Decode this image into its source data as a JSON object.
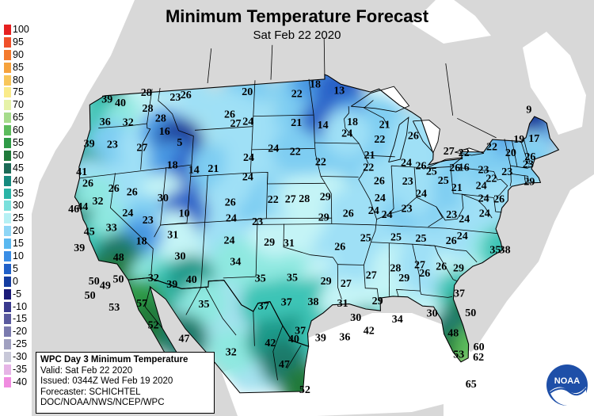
{
  "title": "Minimum Temperature Forecast",
  "subtitle": "Sat Feb 22 2020",
  "legend": [
    {
      "label": "100",
      "color": "#e62020"
    },
    {
      "label": "95",
      "color": "#f0502a"
    },
    {
      "label": "90",
      "color": "#f47a2e"
    },
    {
      "label": "85",
      "color": "#f6a23c"
    },
    {
      "label": "80",
      "color": "#f8c65a"
    },
    {
      "label": "75",
      "color": "#faeb8a"
    },
    {
      "label": "70",
      "color": "#e6f2a8"
    },
    {
      "label": "65",
      "color": "#a6dc8c"
    },
    {
      "label": "60",
      "color": "#5cbc5c"
    },
    {
      "label": "55",
      "color": "#2e9a46"
    },
    {
      "label": "50",
      "color": "#1f7a3a"
    },
    {
      "label": "45",
      "color": "#1c6a56"
    },
    {
      "label": "40",
      "color": "#168a7e"
    },
    {
      "label": "35",
      "color": "#2ab4a6"
    },
    {
      "label": "30",
      "color": "#7ae0dc"
    },
    {
      "label": "25",
      "color": "#b6f0f4"
    },
    {
      "label": "20",
      "color": "#8ed6f6"
    },
    {
      "label": "15",
      "color": "#5ab8f0"
    },
    {
      "label": "10",
      "color": "#3a8ee6"
    },
    {
      "label": "5",
      "color": "#2060c8"
    },
    {
      "label": "0",
      "color": "#143ca0"
    },
    {
      "label": "-5",
      "color": "#1a1a78"
    },
    {
      "label": "-10",
      "color": "#3a3a8e"
    },
    {
      "label": "-15",
      "color": "#5a5a9e"
    },
    {
      "label": "-20",
      "color": "#7a7aae"
    },
    {
      "label": "-25",
      "color": "#a0a0c0"
    },
    {
      "label": "-30",
      "color": "#c8c8d8"
    },
    {
      "label": "-35",
      "color": "#e6b4e6"
    },
    {
      "label": "-40",
      "color": "#f08ce0"
    }
  ],
  "info": {
    "heading": "WPC Day 3 Minimum Temperature",
    "valid": "Valid: Sat Feb 22 2020",
    "issued": "Issued: 0344Z Wed Feb 19 2020",
    "forecaster": "Forecaster: SCHICHTEL",
    "agency": "DOC/NOAA/NWS/NCEP/WPC"
  },
  "logo_text": "NOAA",
  "temperatures": [
    {
      "v": "39",
      "lon": -122.6,
      "lat": 48.7
    },
    {
      "v": "40",
      "lon": -120.8,
      "lat": 48.2
    },
    {
      "v": "28",
      "lon": -117.7,
      "lat": 48.8
    },
    {
      "v": "36",
      "lon": -122.3,
      "lat": 46.7
    },
    {
      "v": "28",
      "lon": -117.2,
      "lat": 47.4
    },
    {
      "v": "23",
      "lon": -113.9,
      "lat": 48.1
    },
    {
      "v": "26",
      "lon": -112.6,
      "lat": 48.2
    },
    {
      "v": "32",
      "lon": -119.4,
      "lat": 46.4
    },
    {
      "v": "28",
      "lon": -115.4,
      "lat": 46.4
    },
    {
      "v": "39",
      "lon": -123.8,
      "lat": 45.0
    },
    {
      "v": "23",
      "lon": -120.9,
      "lat": 44.6
    },
    {
      "v": "27",
      "lon": -117.2,
      "lat": 44.0
    },
    {
      "v": "16",
      "lon": -114.7,
      "lat": 45.2
    },
    {
      "v": "5",
      "lon": -112.7,
      "lat": 44.1
    },
    {
      "v": "41",
      "lon": -124.1,
      "lat": 42.6
    },
    {
      "v": "26",
      "lon": -123.1,
      "lat": 41.5
    },
    {
      "v": "26",
      "lon": -119.9,
      "lat": 40.7
    },
    {
      "v": "26",
      "lon": -117.7,
      "lat": 40.2
    },
    {
      "v": "18",
      "lon": -113.3,
      "lat": 42.2
    },
    {
      "v": "14",
      "lon": -110.7,
      "lat": 41.6
    },
    {
      "v": "21",
      "lon": -108.4,
      "lat": 41.6
    },
    {
      "v": "46",
      "lon": -124.3,
      "lat": 39.4
    },
    {
      "v": "44",
      "lon": -123.3,
      "lat": 39.5
    },
    {
      "v": "32",
      "lon": -121.6,
      "lat": 39.8
    },
    {
      "v": "30",
      "lon": -114.0,
      "lat": 39.4
    },
    {
      "v": "24",
      "lon": -117.9,
      "lat": 38.4
    },
    {
      "v": "45",
      "lon": -122.1,
      "lat": 37.2
    },
    {
      "v": "33",
      "lon": -119.6,
      "lat": 37.3
    },
    {
      "v": "23",
      "lon": -115.5,
      "lat": 37.6
    },
    {
      "v": "10",
      "lon": -111.4,
      "lat": 37.9
    },
    {
      "v": "39",
      "lon": -123.0,
      "lat": 35.9
    },
    {
      "v": "31",
      "lon": -112.5,
      "lat": 36.1
    },
    {
      "v": "18",
      "lon": -116.0,
      "lat": 35.8
    },
    {
      "v": "48",
      "lon": -118.4,
      "lat": 34.6
    },
    {
      "v": "30",
      "lon": -111.5,
      "lat": 34.2
    },
    {
      "v": "50",
      "lon": -120.9,
      "lat": 32.8
    },
    {
      "v": "49",
      "lon": -119.6,
      "lat": 32.3
    },
    {
      "v": "50",
      "lon": -118.2,
      "lat": 32.7
    },
    {
      "v": "32",
      "lon": -114.3,
      "lat": 32.5
    },
    {
      "v": "50",
      "lon": -121.2,
      "lat": 31.6
    },
    {
      "v": "39",
      "lon": -112.2,
      "lat": 31.8
    },
    {
      "v": "40",
      "lon": -110.1,
      "lat": 32.1
    },
    {
      "v": "53",
      "lon": -118.4,
      "lat": 30.3
    },
    {
      "v": "57",
      "lon": -115.4,
      "lat": 30.4
    },
    {
      "v": "52",
      "lon": -114.0,
      "lat": 28.4
    },
    {
      "v": "35",
      "lon": -108.6,
      "lat": 29.9
    },
    {
      "v": "47",
      "lon": -110.6,
      "lat": 27.0
    },
    {
      "v": "32",
      "lon": -105.5,
      "lat": 25.6
    },
    {
      "v": "20",
      "lon": -104.9,
      "lat": 48.1
    },
    {
      "v": "26",
      "lon": -106.9,
      "lat": 46.2
    },
    {
      "v": "27",
      "lon": -106.1,
      "lat": 45.4
    },
    {
      "v": "24",
      "lon": -104.6,
      "lat": 45.5
    },
    {
      "v": "22",
      "lon": -98.7,
      "lat": 47.8
    },
    {
      "v": "18",
      "lon": -96.4,
      "lat": 48.6
    },
    {
      "v": "13",
      "lon": -93.4,
      "lat": 48.1
    },
    {
      "v": "21",
      "lon": -98.7,
      "lat": 45.3
    },
    {
      "v": "14",
      "lon": -95.5,
      "lat": 45.1
    },
    {
      "v": "18",
      "lon": -91.9,
      "lat": 45.4
    },
    {
      "v": "24",
      "lon": -101.4,
      "lat": 43.1
    },
    {
      "v": "22",
      "lon": -98.8,
      "lat": 42.8
    },
    {
      "v": "24",
      "lon": -104.3,
      "lat": 42.4
    },
    {
      "v": "24",
      "lon": -104.3,
      "lat": 40.7
    },
    {
      "v": "22",
      "lon": -95.8,
      "lat": 41.9
    },
    {
      "v": "26",
      "lon": -106.2,
      "lat": 38.6
    },
    {
      "v": "24",
      "lon": -106.0,
      "lat": 37.2
    },
    {
      "v": "23",
      "lon": -103.0,
      "lat": 36.8
    },
    {
      "v": "22",
      "lon": -101.3,
      "lat": 38.7
    },
    {
      "v": "27",
      "lon": -99.3,
      "lat": 38.7
    },
    {
      "v": "28",
      "lon": -97.7,
      "lat": 38.7
    },
    {
      "v": "29",
      "lon": -95.3,
      "lat": 38.9
    },
    {
      "v": "24",
      "lon": -106.1,
      "lat": 35.3
    },
    {
      "v": "29",
      "lon": -101.6,
      "lat": 35.0
    },
    {
      "v": "31",
      "lon": -99.4,
      "lat": 34.9
    },
    {
      "v": "29",
      "lon": -95.5,
      "lat": 37.1
    },
    {
      "v": "34",
      "lon": -105.3,
      "lat": 33.4
    },
    {
      "v": "26",
      "lon": -93.7,
      "lat": 34.6
    },
    {
      "v": "35",
      "lon": -102.5,
      "lat": 31.9
    },
    {
      "v": "35",
      "lon": -99.0,
      "lat": 31.9
    },
    {
      "v": "29",
      "lon": -95.3,
      "lat": 31.6
    },
    {
      "v": "27",
      "lon": -93.1,
      "lat": 31.4
    },
    {
      "v": "27",
      "lon": -90.3,
      "lat": 32.2
    },
    {
      "v": "37",
      "lon": -102.1,
      "lat": 29.5
    },
    {
      "v": "37",
      "lon": -99.6,
      "lat": 29.8
    },
    {
      "v": "38",
      "lon": -96.7,
      "lat": 29.8
    },
    {
      "v": "31",
      "lon": -93.5,
      "lat": 29.7
    },
    {
      "v": "29",
      "lon": -89.7,
      "lat": 30.0
    },
    {
      "v": "30",
      "lon": -92.1,
      "lat": 28.5
    },
    {
      "v": "37",
      "lon": -98.1,
      "lat": 27.3
    },
    {
      "v": "42",
      "lon": -101.3,
      "lat": 26.3
    },
    {
      "v": "40",
      "lon": -98.8,
      "lat": 26.6
    },
    {
      "v": "39",
      "lon": -95.9,
      "lat": 26.7
    },
    {
      "v": "36",
      "lon": -93.3,
      "lat": 26.8
    },
    {
      "v": "42",
      "lon": -90.7,
      "lat": 27.4
    },
    {
      "v": "34",
      "lon": -87.6,
      "lat": 28.5
    },
    {
      "v": "30",
      "lon": -83.8,
      "lat": 29.2
    },
    {
      "v": "47",
      "lon": -99.8,
      "lat": 24.4
    },
    {
      "v": "52",
      "lon": -97.6,
      "lat": 22.2
    },
    {
      "v": "25",
      "lon": -90.8,
      "lat": 35.4
    },
    {
      "v": "25",
      "lon": -87.4,
      "lat": 35.6
    },
    {
      "v": "25",
      "lon": -84.6,
      "lat": 35.6
    },
    {
      "v": "26",
      "lon": -81.2,
      "lat": 35.6
    },
    {
      "v": "28",
      "lon": -87.6,
      "lat": 32.9
    },
    {
      "v": "29",
      "lon": -86.7,
      "lat": 32.1
    },
    {
      "v": "27",
      "lon": -84.9,
      "lat": 33.3
    },
    {
      "v": "26",
      "lon": -84.4,
      "lat": 32.6
    },
    {
      "v": "26",
      "lon": -82.5,
      "lat": 33.3
    },
    {
      "v": "29",
      "lon": -80.6,
      "lat": 33.3
    },
    {
      "v": "37",
      "lon": -80.7,
      "lat": 31.1
    },
    {
      "v": "50",
      "lon": -79.6,
      "lat": 29.5
    },
    {
      "v": "48",
      "lon": -81.6,
      "lat": 27.6
    },
    {
      "v": "53",
      "lon": -81.1,
      "lat": 25.8
    },
    {
      "v": "60",
      "lon": -78.9,
      "lat": 26.6
    },
    {
      "v": "62",
      "lon": -79.0,
      "lat": 25.7
    },
    {
      "v": "65",
      "lon": -79.9,
      "lat": 23.3
    },
    {
      "v": "26",
      "lon": -92.7,
      "lat": 37.5
    },
    {
      "v": "24",
      "lon": -89.8,
      "lat": 37.8
    },
    {
      "v": "24",
      "lon": -88.3,
      "lat": 37.5
    },
    {
      "v": "24",
      "lon": -89.0,
      "lat": 38.9
    },
    {
      "v": "23",
      "lon": -86.0,
      "lat": 38.1
    },
    {
      "v": "23",
      "lon": -85.7,
      "lat": 40.5
    },
    {
      "v": "24",
      "lon": -84.2,
      "lat": 39.5
    },
    {
      "v": "23",
      "lon": -80.9,
      "lat": 37.9
    },
    {
      "v": "24",
      "lon": -79.5,
      "lat": 37.6
    },
    {
      "v": "24",
      "lon": -77.1,
      "lat": 38.3
    },
    {
      "v": "24",
      "lon": -79.9,
      "lat": 36.1
    },
    {
      "v": "35",
      "lon": -76.3,
      "lat": 35.2
    },
    {
      "v": "38",
      "lon": -75.2,
      "lat": 35.3
    },
    {
      "v": "22",
      "lon": -90.2,
      "lat": 41.5
    },
    {
      "v": "21",
      "lon": -90.0,
      "lat": 42.6
    },
    {
      "v": "26",
      "lon": -89.0,
      "lat": 40.4
    },
    {
      "v": "22",
      "lon": -88.7,
      "lat": 44.0
    },
    {
      "v": "21",
      "lon": -88.0,
      "lat": 45.3
    },
    {
      "v": "24",
      "lon": -92.6,
      "lat": 44.4
    },
    {
      "v": "24",
      "lon": -85.7,
      "lat": 42.1
    },
    {
      "v": "26",
      "lon": -84.6,
      "lat": 44.5
    },
    {
      "v": "26",
      "lon": -84.0,
      "lat": 41.9
    },
    {
      "v": "25",
      "lon": -82.8,
      "lat": 41.5
    },
    {
      "v": "27",
      "lon": -80.5,
      "lat": 43.4
    },
    {
      "v": "26",
      "lon": -80.0,
      "lat": 42.0
    },
    {
      "v": "16",
      "lon": -78.9,
      "lat": 42.1
    },
    {
      "v": "25",
      "lon": -81.5,
      "lat": 40.8
    },
    {
      "v": "21",
      "lon": -80.0,
      "lat": 40.3
    },
    {
      "v": "22",
      "lon": -78.7,
      "lat": 43.4
    },
    {
      "v": "23",
      "lon": -76.6,
      "lat": 42.1
    },
    {
      "v": "24",
      "lon": -77.1,
      "lat": 40.7
    },
    {
      "v": "24",
      "lon": -77.0,
      "lat": 39.6
    },
    {
      "v": "22",
      "lon": -75.8,
      "lat": 41.4
    },
    {
      "v": "22",
      "lon": -75.2,
      "lat": 44.2
    },
    {
      "v": "20",
      "lon": -73.0,
      "lat": 43.9
    },
    {
      "v": "23",
      "lon": -73.8,
      "lat": 42.2
    },
    {
      "v": "29",
      "lon": -71.3,
      "lat": 41.6
    },
    {
      "v": "26",
      "lon": -75.2,
      "lat": 39.7
    },
    {
      "v": "19",
      "lon": -71.7,
      "lat": 45.2
    },
    {
      "v": "17",
      "lon": -69.8,
      "lat": 45.5
    },
    {
      "v": "26",
      "lon": -70.7,
      "lat": 43.8
    },
    {
      "v": "23",
      "lon": -71.1,
      "lat": 43.1
    },
    {
      "v": "9",
      "lon": -69.7,
      "lat": 48.0
    }
  ]
}
